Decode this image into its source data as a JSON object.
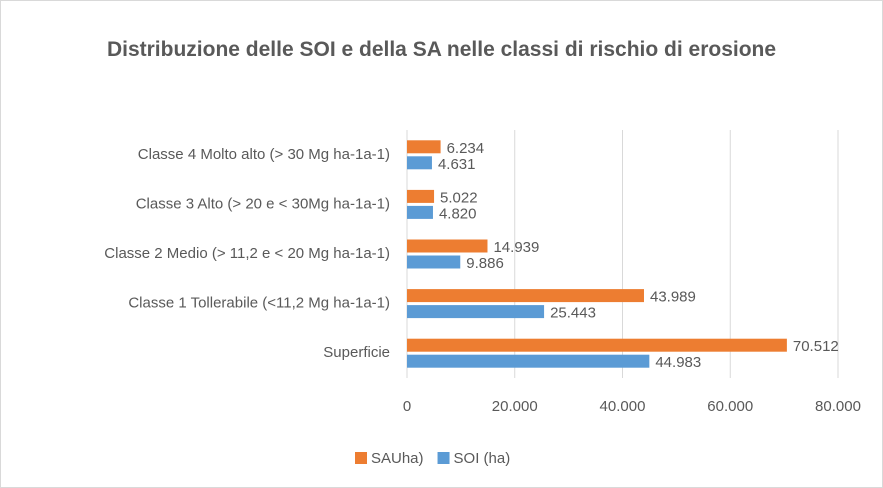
{
  "chart_data": {
    "type": "horizontal_bar",
    "title": "Distribuzione delle SOI e della SA nelle classi di rischio di erosione",
    "categories": [
      "Classe 4 Molto alto (> 30 Mg ha-1a-1)",
      "Classe 3 Alto (> 20 e < 30Mg ha-1a-1)",
      "Classe 2 Medio (> 11,2 e < 20 Mg ha-1a-1)",
      "Classe 1 Tollerabile (<11,2 Mg ha-1a-1)",
      "Superficie"
    ],
    "series": [
      {
        "name": "SAUha)",
        "color": "#ed7d31",
        "values": [
          6234,
          5022,
          14939,
          43989,
          70512
        ],
        "value_labels": [
          "6.234",
          "5.022",
          "14.939",
          "43.989",
          "70.512"
        ]
      },
      {
        "name": "SOI (ha)",
        "color": "#5b9bd5",
        "values": [
          4631,
          4820,
          9886,
          25443,
          44983
        ],
        "value_labels": [
          "4.631",
          "4.820",
          "9.886",
          "25.443",
          "44.983"
        ]
      }
    ],
    "xlim": [
      0,
      80000
    ],
    "xticks": [
      0,
      {
        "value": 20000,
        "label": "20.000"
      },
      {
        "value": 40000,
        "label": "40.000"
      },
      {
        "value": 60000,
        "label": "60.000"
      },
      {
        "value": 80000,
        "label": "80.000"
      }
    ],
    "grid": true,
    "legend": "bottom"
  }
}
